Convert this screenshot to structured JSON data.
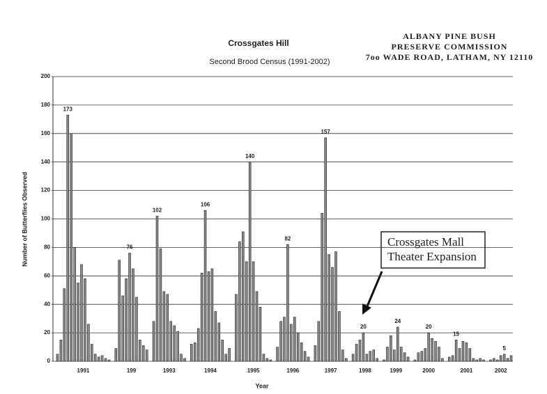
{
  "chart_data": {
    "type": "grouped-bar",
    "title": "Crossgates Hill",
    "subtitle": "Second Brood Census (1991-2002)",
    "y_label": "Number of Butterflies Observed",
    "x_label": "Year",
    "letterhead": [
      "ALBANY PINE BUSH",
      "PRESERVE COMMISSION",
      "7oo WADE ROAD, LATHAM, NY 12110"
    ],
    "annotation": [
      "Crossgates Mall",
      "Theater Expansion"
    ],
    "color": "#8a8a8a",
    "grid": true,
    "ylim": [
      0,
      200
    ],
    "yticks": [
      0,
      20,
      40,
      60,
      80,
      100,
      120,
      140,
      160,
      180,
      200
    ],
    "groups": [
      {
        "label": "1991",
        "values": [
          5,
          15,
          51,
          173,
          160,
          80,
          55,
          68,
          58,
          26,
          12,
          5,
          3,
          4,
          2,
          1
        ]
      },
      {
        "label": "199",
        "values": [
          9,
          71,
          46,
          58,
          76,
          65,
          45,
          15,
          11,
          8
        ]
      },
      {
        "label": "1993",
        "values": [
          28,
          102,
          79,
          49,
          47,
          28,
          25,
          21,
          5,
          2
        ]
      },
      {
        "label": "1994",
        "values": [
          12,
          13,
          23,
          62,
          106,
          63,
          65,
          35,
          27,
          15,
          5,
          9
        ]
      },
      {
        "label": "1995",
        "values": [
          47,
          84,
          91,
          70,
          140,
          70,
          49,
          38,
          5,
          2,
          1
        ]
      },
      {
        "label": "1996",
        "values": [
          10,
          28,
          31,
          82,
          26,
          31,
          20,
          13,
          7,
          3
        ]
      },
      {
        "label": "1997",
        "values": [
          11,
          28,
          104,
          157,
          75,
          66,
          77,
          35,
          8,
          2
        ]
      },
      {
        "label": "1998",
        "values": [
          5,
          12,
          15,
          20,
          5,
          7,
          8,
          2
        ]
      },
      {
        "label": "1999",
        "values": [
          1,
          10,
          18,
          8,
          24,
          10,
          6,
          3
        ]
      },
      {
        "label": "2000",
        "values": [
          1,
          6,
          7,
          9,
          20,
          16,
          14,
          10,
          2
        ]
      },
      {
        "label": "2001",
        "values": [
          3,
          4,
          15,
          9,
          14,
          13,
          9,
          2,
          1,
          2,
          1
        ]
      },
      {
        "label": "2002",
        "values": [
          1,
          2,
          1,
          4,
          5,
          2,
          4
        ]
      }
    ]
  }
}
